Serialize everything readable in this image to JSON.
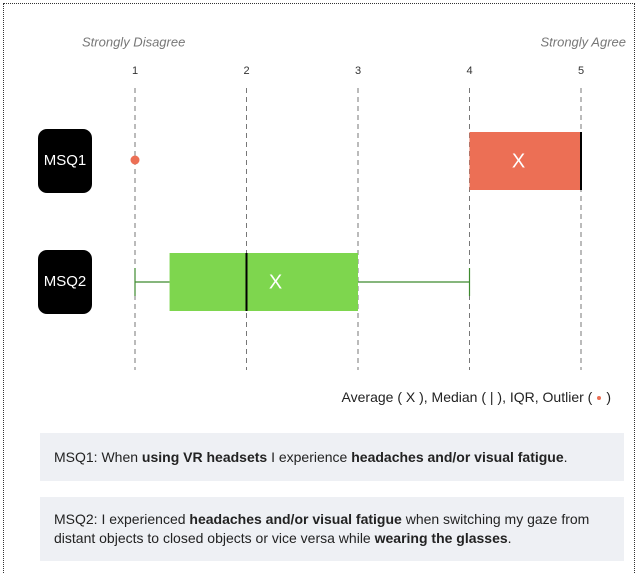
{
  "chart_data": {
    "type": "box",
    "x_end_labels": [
      "Strongly Disagree",
      "Strongly Agree"
    ],
    "xlim": [
      1,
      5
    ],
    "xticks": [
      1,
      2,
      3,
      4,
      5
    ],
    "grid": true,
    "mean_marker": "X",
    "series": [
      {
        "name": "MSQ1",
        "color": "#ec6f55",
        "min": 4,
        "q1": 4,
        "median": 5,
        "q3": 5,
        "max": 5,
        "mean": 4.44,
        "outliers": [
          1
        ]
      },
      {
        "name": "MSQ2",
        "color": "#7ed64e",
        "min": 1,
        "q1": 1.31,
        "median": 2,
        "q3": 3,
        "max": 4,
        "mean": 2.26,
        "outliers": []
      }
    ],
    "legend": {
      "before": "Average ( X ), Median ( | ), IQR, Outlier (",
      "after": ")"
    },
    "notes": [
      [
        {
          "text": "MSQ1: When "
        },
        {
          "text": "using VR headsets",
          "bold": true
        },
        {
          "text": " I experience "
        },
        {
          "text": "headaches and/or visual fatigue",
          "bold": true
        },
        {
          "text": "."
        }
      ],
      [
        {
          "text": "MSQ2: I experienced "
        },
        {
          "text": "headaches and/or visual fatigue",
          "bold": true
        },
        {
          "text": " when switching my gaze from distant objects to closed objects or vice versa while "
        },
        {
          "text": "wearing the glasses",
          "bold": true
        },
        {
          "text": "."
        }
      ]
    ]
  }
}
